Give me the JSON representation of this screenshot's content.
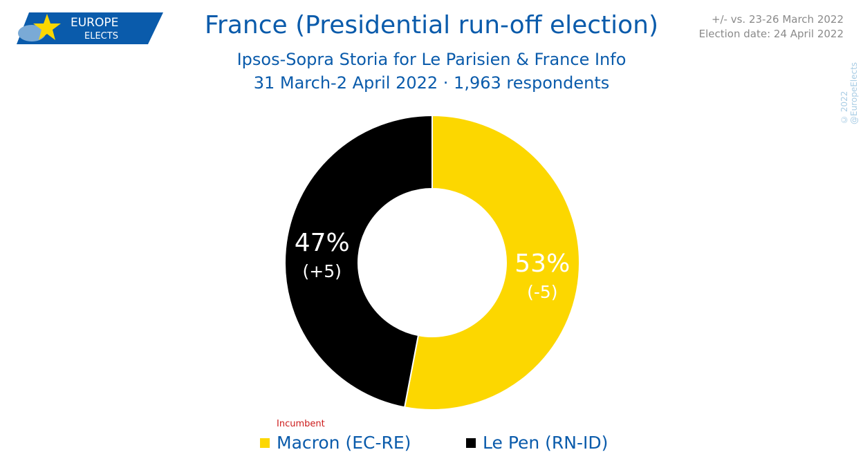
{
  "logo": {
    "line1": "EUROPE",
    "line2": "ELECTS"
  },
  "header": {
    "title": "France (Presidential run-off election)",
    "subtitle": "Ipsos-Sopra Storia for Le Parisien & France Info",
    "fieldwork": "31 March-2 April 2022 · 1,963 respondents"
  },
  "notes": {
    "comparison": "+/- vs. 23-26 March 2022",
    "election_date": "Election date: 24 April 2022"
  },
  "copyright": "© 2022 @EuropeElects",
  "colors": {
    "accent": "#0a5bab",
    "macron": "#fcd700",
    "lepen": "#000000",
    "incumbent": "#cc1a1a"
  },
  "chart_data": {
    "type": "pie",
    "donut": true,
    "series": [
      {
        "name": "Macron (EC-RE)",
        "value": 53,
        "label": "53%",
        "change": "(-5)",
        "color": "#fcd700",
        "incumbent": true
      },
      {
        "name": "Le Pen (RN-ID)",
        "value": 47,
        "label": "47%",
        "change": "(+5)",
        "color": "#000000",
        "incumbent": false
      }
    ],
    "legend_placement": "bottom",
    "incumbent_label": "Incumbent"
  }
}
